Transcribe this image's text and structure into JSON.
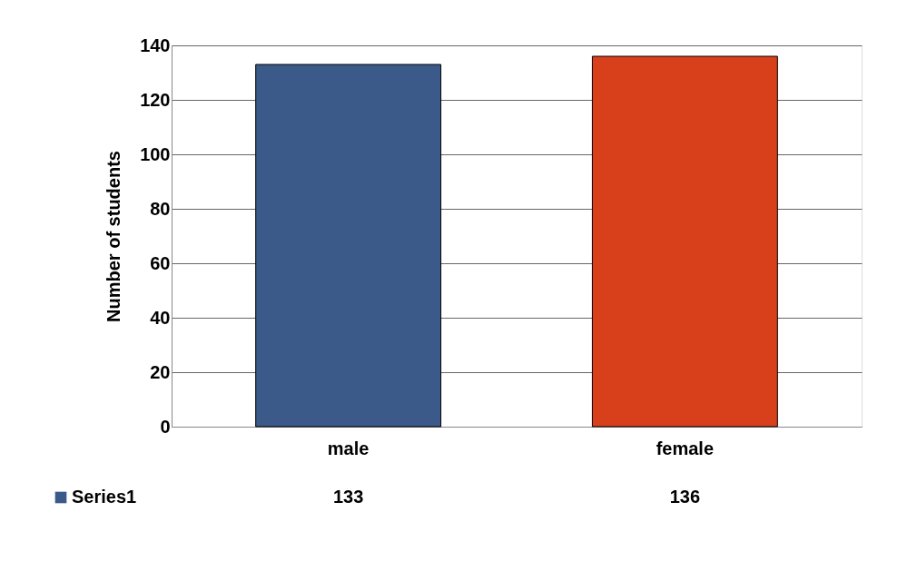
{
  "chart_data": {
    "type": "bar",
    "ylabel": "Number of students",
    "categories": [
      "male",
      "female"
    ],
    "series": [
      {
        "name": "Series1",
        "colors": [
          "#3b5a8a",
          "#d8401c"
        ],
        "values": [
          133,
          136
        ]
      }
    ],
    "ylim": [
      0,
      140
    ],
    "yticks": [
      0,
      20,
      40,
      60,
      80,
      100,
      120,
      140
    ],
    "grid": "y",
    "data_labels": true,
    "legend": "bottom left"
  }
}
